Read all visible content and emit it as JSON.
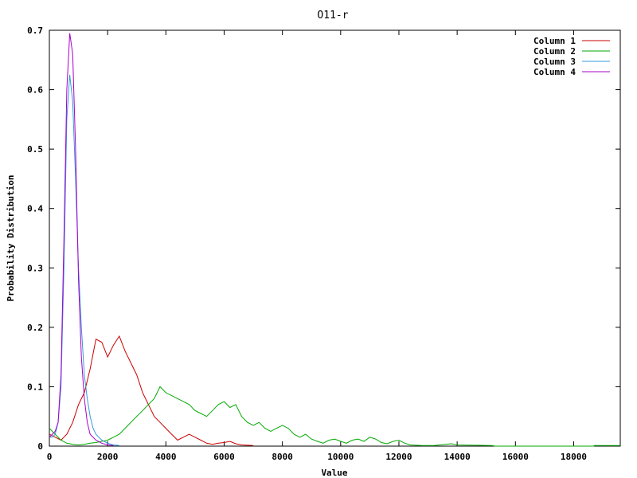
{
  "chart_data": {
    "type": "line",
    "title": "O11-r",
    "xlabel": "Value",
    "ylabel": "Probability Distribution",
    "xlim": [
      0,
      19600
    ],
    "ylim": [
      0,
      0.7
    ],
    "x_ticks": [
      0,
      2000,
      4000,
      6000,
      8000,
      10000,
      12000,
      14000,
      16000,
      18000
    ],
    "y_ticks": [
      0,
      0.1,
      0.2,
      0.3,
      0.4,
      0.5,
      0.6,
      0.7
    ],
    "x_tick_labels": [
      "0",
      "2000",
      "4000",
      "6000",
      "8000",
      "10000",
      "12000",
      "14000",
      "16000",
      "18000"
    ],
    "y_tick_labels": [
      "0",
      "0.1",
      "0.2",
      "0.3",
      "0.4",
      "0.5",
      "0.6",
      "0.7"
    ],
    "grid": false,
    "legend_position": "top-right",
    "series": [
      {
        "name": "Column 1",
        "color": "#cc0000",
        "points": [
          [
            0,
            0.02
          ],
          [
            200,
            0.015
          ],
          [
            400,
            0.01
          ],
          [
            600,
            0.02
          ],
          [
            800,
            0.04
          ],
          [
            1000,
            0.07
          ],
          [
            1200,
            0.09
          ],
          [
            1400,
            0.13
          ],
          [
            1600,
            0.18
          ],
          [
            1800,
            0.175
          ],
          [
            2000,
            0.15
          ],
          [
            2200,
            0.17
          ],
          [
            2400,
            0.185
          ],
          [
            2600,
            0.16
          ],
          [
            2800,
            0.14
          ],
          [
            3000,
            0.12
          ],
          [
            3200,
            0.09
          ],
          [
            3400,
            0.07
          ],
          [
            3600,
            0.05
          ],
          [
            3800,
            0.04
          ],
          [
            4000,
            0.03
          ],
          [
            4200,
            0.02
          ],
          [
            4400,
            0.01
          ],
          [
            4600,
            0.015
          ],
          [
            4800,
            0.02
          ],
          [
            5000,
            0.015
          ],
          [
            5200,
            0.01
          ],
          [
            5400,
            0.005
          ],
          [
            5600,
            0.003
          ],
          [
            5800,
            0.005
          ],
          [
            6000,
            0.006
          ],
          [
            6200,
            0.008
          ],
          [
            6400,
            0.004
          ],
          [
            6600,
            0.002
          ],
          [
            7000,
            0.001
          ]
        ]
      },
      {
        "name": "Column 2",
        "color": "#00aa00",
        "points": [
          [
            0,
            0.03
          ],
          [
            200,
            0.02
          ],
          [
            400,
            0.01
          ],
          [
            600,
            0.005
          ],
          [
            800,
            0.003
          ],
          [
            1000,
            0.002
          ],
          [
            1200,
            0.003
          ],
          [
            1400,
            0.005
          ],
          [
            1600,
            0.006
          ],
          [
            1800,
            0.008
          ],
          [
            2000,
            0.01
          ],
          [
            2200,
            0.015
          ],
          [
            2400,
            0.02
          ],
          [
            2600,
            0.03
          ],
          [
            2800,
            0.04
          ],
          [
            3000,
            0.05
          ],
          [
            3200,
            0.06
          ],
          [
            3400,
            0.07
          ],
          [
            3600,
            0.08
          ],
          [
            3800,
            0.1
          ],
          [
            4000,
            0.09
          ],
          [
            4200,
            0.085
          ],
          [
            4400,
            0.08
          ],
          [
            4600,
            0.075
          ],
          [
            4800,
            0.07
          ],
          [
            5000,
            0.06
          ],
          [
            5200,
            0.055
          ],
          [
            5400,
            0.05
          ],
          [
            5600,
            0.06
          ],
          [
            5800,
            0.07
          ],
          [
            6000,
            0.075
          ],
          [
            6200,
            0.065
          ],
          [
            6400,
            0.07
          ],
          [
            6600,
            0.05
          ],
          [
            6800,
            0.04
          ],
          [
            7000,
            0.035
          ],
          [
            7200,
            0.04
          ],
          [
            7400,
            0.03
          ],
          [
            7600,
            0.025
          ],
          [
            7800,
            0.03
          ],
          [
            8000,
            0.035
          ],
          [
            8200,
            0.03
          ],
          [
            8400,
            0.02
          ],
          [
            8600,
            0.015
          ],
          [
            8800,
            0.02
          ],
          [
            9000,
            0.012
          ],
          [
            9200,
            0.008
          ],
          [
            9400,
            0.005
          ],
          [
            9600,
            0.01
          ],
          [
            9800,
            0.012
          ],
          [
            10000,
            0.008
          ],
          [
            10200,
            0.005
          ],
          [
            10400,
            0.01
          ],
          [
            10600,
            0.012
          ],
          [
            10800,
            0.008
          ],
          [
            11000,
            0.015
          ],
          [
            11200,
            0.012
          ],
          [
            11400,
            0.006
          ],
          [
            11600,
            0.004
          ],
          [
            11800,
            0.008
          ],
          [
            12000,
            0.01
          ],
          [
            12200,
            0.005
          ],
          [
            12400,
            0.002
          ],
          [
            12800,
            0.001
          ],
          [
            13200,
            0.001
          ],
          [
            13800,
            0.004
          ],
          [
            14000,
            0.002
          ],
          [
            15200,
            0.001
          ],
          [
            15300,
            0
          ],
          [
            18700,
            0
          ],
          [
            18700,
            0.001
          ],
          [
            19600,
            0.001
          ]
        ]
      },
      {
        "name": "Column 3",
        "color": "#3399dd",
        "points": [
          [
            0,
            0.015
          ],
          [
            100,
            0.015
          ],
          [
            200,
            0.02
          ],
          [
            300,
            0.04
          ],
          [
            400,
            0.1
          ],
          [
            500,
            0.3
          ],
          [
            600,
            0.55
          ],
          [
            700,
            0.625
          ],
          [
            800,
            0.58
          ],
          [
            900,
            0.45
          ],
          [
            1000,
            0.3
          ],
          [
            1100,
            0.2
          ],
          [
            1200,
            0.12
          ],
          [
            1300,
            0.08
          ],
          [
            1400,
            0.05
          ],
          [
            1500,
            0.03
          ],
          [
            1600,
            0.02
          ],
          [
            1800,
            0.01
          ],
          [
            2000,
            0.005
          ],
          [
            2200,
            0.002
          ],
          [
            2400,
            0.001
          ]
        ]
      },
      {
        "name": "Column 4",
        "color": "#aa00cc",
        "points": [
          [
            0,
            0.015
          ],
          [
            100,
            0.02
          ],
          [
            200,
            0.025
          ],
          [
            300,
            0.04
          ],
          [
            400,
            0.12
          ],
          [
            500,
            0.35
          ],
          [
            600,
            0.6
          ],
          [
            700,
            0.695
          ],
          [
            800,
            0.66
          ],
          [
            900,
            0.5
          ],
          [
            1000,
            0.28
          ],
          [
            1100,
            0.15
          ],
          [
            1200,
            0.08
          ],
          [
            1300,
            0.04
          ],
          [
            1400,
            0.02
          ],
          [
            1600,
            0.01
          ],
          [
            1800,
            0.005
          ],
          [
            2000,
            0.002
          ],
          [
            2200,
            0.001
          ]
        ]
      }
    ]
  }
}
